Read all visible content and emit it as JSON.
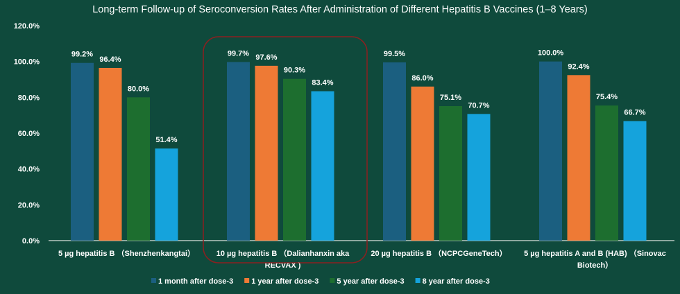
{
  "chart_data": {
    "type": "bar",
    "title": "Long-term Follow-up of Seroconversion Rates After Administration of Different Hepatitis B Vaccines (1–8 Years)",
    "categories": [
      [
        "5 µg hepatitis B （Shenzhenkangtai）"
      ],
      [
        "10 µg hepatitis B （Dalianhanxin aka",
        "RECVAX )"
      ],
      [
        "20 µg hepatitis B （NCPCGeneTech）"
      ],
      [
        "5 µg hepatitis A and B (HAB) （Sinovac",
        "Biotech）"
      ]
    ],
    "series": [
      {
        "name": "1 month after dose-3",
        "color": "#1b5f80",
        "values": [
          99.2,
          99.7,
          99.5,
          100.0
        ]
      },
      {
        "name": "1 year after dose-3",
        "color": "#ee7a35",
        "values": [
          96.4,
          97.6,
          86.0,
          92.4
        ]
      },
      {
        "name": "5 year after dose-3",
        "color": "#1d6e2f",
        "values": [
          80.0,
          90.3,
          75.1,
          75.4
        ]
      },
      {
        "name": "8 year after dose-3",
        "color": "#15a3dc",
        "values": [
          51.4,
          83.4,
          70.7,
          66.7
        ]
      }
    ],
    "ylim": [
      0,
      120
    ],
    "yticks": [
      "0.0%",
      "20.0%",
      "40.0%",
      "60.0%",
      "80.0%",
      "100.0%",
      "120.0%"
    ],
    "value_suffix": "%",
    "grid": false,
    "legend": "bottom",
    "highlight": {
      "category_index": 1,
      "color": "#8b2020"
    },
    "background": "#0f4a3c"
  }
}
